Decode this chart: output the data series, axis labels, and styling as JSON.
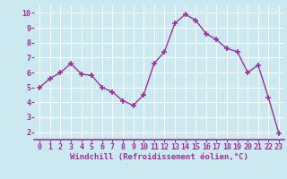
{
  "x": [
    0,
    1,
    2,
    3,
    4,
    5,
    6,
    7,
    8,
    9,
    10,
    11,
    12,
    13,
    14,
    15,
    16,
    17,
    18,
    19,
    20,
    21,
    22,
    23
  ],
  "y": [
    5.0,
    5.6,
    6.0,
    6.6,
    5.9,
    5.8,
    5.0,
    4.7,
    4.1,
    3.8,
    4.5,
    6.6,
    7.4,
    9.3,
    9.9,
    9.5,
    8.6,
    8.2,
    7.6,
    7.4,
    6.0,
    6.5,
    4.3,
    1.9
  ],
  "line_color": "#993399",
  "marker": "+",
  "markersize": 4,
  "markeredgewidth": 1.2,
  "linewidth": 1.0,
  "xlabel": "Windchill (Refroidissement éolien,°C)",
  "xlabel_color": "#993399",
  "xlabel_fontsize": 6.5,
  "xtick_labels": [
    "0",
    "1",
    "2",
    "3",
    "4",
    "5",
    "6",
    "7",
    "8",
    "9",
    "10",
    "11",
    "12",
    "13",
    "14",
    "15",
    "16",
    "17",
    "18",
    "19",
    "20",
    "21",
    "22",
    "23"
  ],
  "ytick_vals": [
    2,
    3,
    4,
    5,
    6,
    7,
    8,
    9,
    10
  ],
  "ytick_labels": [
    "2",
    "3",
    "4",
    "5",
    "6",
    "7",
    "8",
    "9",
    "10"
  ],
  "ylim": [
    1.5,
    10.5
  ],
  "xlim": [
    -0.5,
    23.5
  ],
  "bg_color": "#cce8f0",
  "grid_color": "#b0d8e8",
  "tick_color": "#993399",
  "tick_fontsize": 6.0,
  "spine_color": "#993399"
}
